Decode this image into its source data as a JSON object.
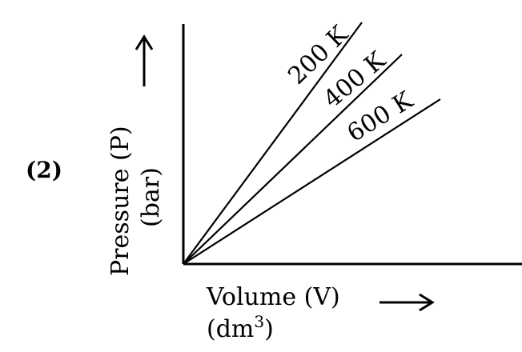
{
  "option_label": "(2)",
  "y_axis": {
    "label_line1": "Pressure (P)",
    "label_line2": "(bar)"
  },
  "x_axis": {
    "label_line1": "Volume (V)",
    "label_line2_base": "(dm",
    "label_line2_sup": "3",
    "label_line2_end": ")"
  },
  "isotherms": [
    {
      "label": "200 K"
    },
    {
      "label": "400 K"
    },
    {
      "label": "600 K"
    }
  ]
}
